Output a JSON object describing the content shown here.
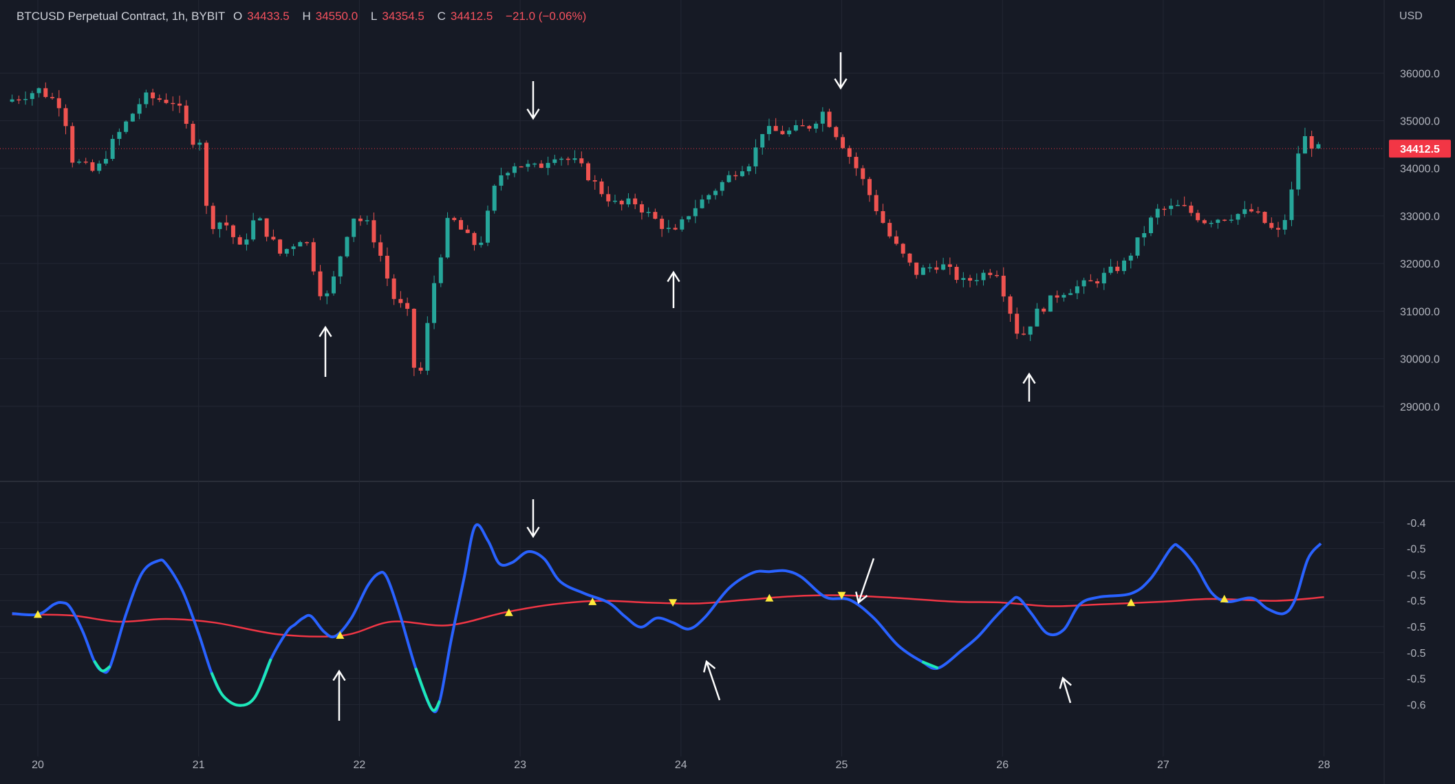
{
  "header": {
    "symbol": "BTCUSD Perpetual Contract, 1h, BYBIT",
    "open_label": "O",
    "open": "34433.5",
    "high_label": "H",
    "high": "34550.0",
    "low_label": "L",
    "low": "34354.5",
    "close_label": "C",
    "close": "34412.5",
    "change": "−21.0 (−0.06%)"
  },
  "currency": "USD",
  "last_price_label": "34412.5",
  "colors": {
    "background": "#161a25",
    "grid": "#232734",
    "up": "#26a69a",
    "down": "#ef5350",
    "oscillator": "#2962ff",
    "oscillator_oversold": "#1de9b6",
    "signal": "#f23645",
    "marker": "#ffeb3b",
    "price_tag": "#f23645",
    "arrows": "#ffffff"
  },
  "chart_data": [
    {
      "type": "candlestick",
      "title": "BTCUSD Perpetual Contract, 1h, BYBIT",
      "x_ticks": [
        "20",
        "21",
        "22",
        "23",
        "24",
        "25",
        "26",
        "27",
        "28"
      ],
      "xlim": [
        19.84,
        28.41
      ],
      "y_ticks": [
        "36000.0",
        "35000.0",
        "34000.0",
        "33000.0",
        "32000.0",
        "31000.0",
        "30000.0",
        "29000.0"
      ],
      "ylim": [
        28000,
        36900
      ],
      "last_price": 34412.5,
      "grid": true,
      "anchors": [
        [
          19.84,
          35400
        ],
        [
          20.05,
          35650
        ],
        [
          20.2,
          35300
        ],
        [
          20.25,
          34200
        ],
        [
          20.4,
          33900
        ],
        [
          20.5,
          34500
        ],
        [
          20.7,
          35500
        ],
        [
          20.9,
          35400
        ],
        [
          21.0,
          34600
        ],
        [
          21.05,
          34600
        ],
        [
          21.1,
          32800
        ],
        [
          21.2,
          32900
        ],
        [
          21.3,
          32300
        ],
        [
          21.4,
          33000
        ],
        [
          21.55,
          32200
        ],
        [
          21.7,
          32600
        ],
        [
          21.8,
          31400
        ],
        [
          21.85,
          31300
        ],
        [
          21.95,
          32500
        ],
        [
          22.0,
          33000
        ],
        [
          22.1,
          32800
        ],
        [
          22.17,
          32200
        ],
        [
          22.25,
          31300
        ],
        [
          22.35,
          30900
        ],
        [
          22.4,
          29200
        ],
        [
          22.5,
          31500
        ],
        [
          22.6,
          33000
        ],
        [
          22.75,
          32400
        ],
        [
          22.8,
          32500
        ],
        [
          22.9,
          33800
        ],
        [
          23.0,
          34100
        ],
        [
          23.15,
          34000
        ],
        [
          23.25,
          34300
        ],
        [
          23.4,
          34100
        ],
        [
          23.55,
          33500
        ],
        [
          23.65,
          33200
        ],
        [
          23.75,
          33300
        ],
        [
          23.85,
          33000
        ],
        [
          24.0,
          32600
        ],
        [
          24.1,
          33100
        ],
        [
          24.2,
          33400
        ],
        [
          24.4,
          34000
        ],
        [
          24.5,
          34200
        ],
        [
          24.52,
          34800
        ],
        [
          24.7,
          34750
        ],
        [
          24.85,
          34900
        ],
        [
          24.92,
          35200
        ],
        [
          25.05,
          34500
        ],
        [
          25.15,
          33900
        ],
        [
          25.35,
          32500
        ],
        [
          25.5,
          31800
        ],
        [
          25.65,
          32000
        ],
        [
          25.8,
          31600
        ],
        [
          26.0,
          31900
        ],
        [
          26.1,
          30900
        ],
        [
          26.15,
          30400
        ],
        [
          26.25,
          30950
        ],
        [
          26.4,
          31400
        ],
        [
          26.6,
          31600
        ],
        [
          26.8,
          32000
        ],
        [
          27.0,
          33100
        ],
        [
          27.15,
          33200
        ],
        [
          27.3,
          32900
        ],
        [
          27.45,
          33000
        ],
        [
          27.6,
          33100
        ],
        [
          27.75,
          32600
        ],
        [
          27.82,
          33100
        ],
        [
          27.9,
          34700
        ],
        [
          28.0,
          34400
        ]
      ]
    },
    {
      "type": "line",
      "x_ticks": [
        "20",
        "21",
        "22",
        "23",
        "24",
        "25",
        "26",
        "27",
        "28"
      ],
      "y_ticks": [
        "-0.4",
        "-0.5",
        "-0.5",
        "-0.5",
        "-0.5",
        "-0.5",
        "-0.5",
        "-0.6"
      ],
      "ylim": [
        -0.63,
        -0.385
      ],
      "oversold_below": -0.56,
      "series": [
        {
          "role": "oscillator",
          "points": [
            [
              19.84,
              -0.5
            ],
            [
              20.0,
              -0.501
            ],
            [
              20.1,
              -0.49
            ],
            [
              20.15,
              -0.488
            ],
            [
              20.2,
              -0.493
            ],
            [
              20.28,
              -0.52
            ],
            [
              20.35,
              -0.552
            ],
            [
              20.4,
              -0.563
            ],
            [
              20.45,
              -0.558
            ],
            [
              20.55,
              -0.5
            ],
            [
              20.65,
              -0.455
            ],
            [
              20.75,
              -0.442
            ],
            [
              20.8,
              -0.446
            ],
            [
              20.9,
              -0.475
            ],
            [
              21.0,
              -0.522
            ],
            [
              21.08,
              -0.565
            ],
            [
              21.15,
              -0.59
            ],
            [
              21.25,
              -0.601
            ],
            [
              21.35,
              -0.592
            ],
            [
              21.45,
              -0.55
            ],
            [
              21.55,
              -0.52
            ],
            [
              21.6,
              -0.512
            ],
            [
              21.65,
              -0.505
            ],
            [
              21.7,
              -0.503
            ],
            [
              21.78,
              -0.52
            ],
            [
              21.85,
              -0.525
            ],
            [
              21.95,
              -0.505
            ],
            [
              22.05,
              -0.47
            ],
            [
              22.12,
              -0.456
            ],
            [
              22.17,
              -0.46
            ],
            [
              22.25,
              -0.5
            ],
            [
              22.35,
              -0.56
            ],
            [
              22.45,
              -0.605
            ],
            [
              22.5,
              -0.596
            ],
            [
              22.57,
              -0.53
            ],
            [
              22.65,
              -0.462
            ],
            [
              22.72,
              -0.404
            ],
            [
              22.8,
              -0.42
            ],
            [
              22.87,
              -0.445
            ],
            [
              22.95,
              -0.444
            ],
            [
              23.05,
              -0.432
            ],
            [
              23.15,
              -0.44
            ],
            [
              23.25,
              -0.465
            ],
            [
              23.4,
              -0.478
            ],
            [
              23.55,
              -0.488
            ],
            [
              23.65,
              -0.503
            ],
            [
              23.75,
              -0.515
            ],
            [
              23.85,
              -0.505
            ],
            [
              23.95,
              -0.51
            ],
            [
              24.05,
              -0.517
            ],
            [
              24.15,
              -0.504
            ],
            [
              24.3,
              -0.472
            ],
            [
              24.45,
              -0.455
            ],
            [
              24.55,
              -0.454
            ],
            [
              24.65,
              -0.453
            ],
            [
              24.75,
              -0.46
            ],
            [
              24.9,
              -0.482
            ],
            [
              25.05,
              -0.485
            ],
            [
              25.2,
              -0.505
            ],
            [
              25.35,
              -0.535
            ],
            [
              25.5,
              -0.553
            ],
            [
              25.6,
              -0.56
            ],
            [
              25.75,
              -0.54
            ],
            [
              25.85,
              -0.525
            ],
            [
              25.95,
              -0.505
            ],
            [
              26.05,
              -0.487
            ],
            [
              26.1,
              -0.483
            ],
            [
              26.18,
              -0.5
            ],
            [
              26.28,
              -0.522
            ],
            [
              26.38,
              -0.518
            ],
            [
              26.48,
              -0.49
            ],
            [
              26.6,
              -0.482
            ],
            [
              26.8,
              -0.478
            ],
            [
              26.92,
              -0.462
            ],
            [
              27.05,
              -0.428
            ],
            [
              27.1,
              -0.427
            ],
            [
              27.2,
              -0.447
            ],
            [
              27.3,
              -0.477
            ],
            [
              27.4,
              -0.487
            ],
            [
              27.55,
              -0.483
            ],
            [
              27.65,
              -0.495
            ],
            [
              27.75,
              -0.5
            ],
            [
              27.82,
              -0.485
            ],
            [
              27.9,
              -0.44
            ],
            [
              27.98,
              -0.423
            ]
          ]
        },
        {
          "role": "signal",
          "points": [
            [
              19.84,
              -0.501
            ],
            [
              20.2,
              -0.502
            ],
            [
              20.5,
              -0.509
            ],
            [
              20.8,
              -0.506
            ],
            [
              21.1,
              -0.51
            ],
            [
              21.5,
              -0.523
            ],
            [
              21.9,
              -0.524
            ],
            [
              22.2,
              -0.509
            ],
            [
              22.55,
              -0.513
            ],
            [
              22.9,
              -0.499
            ],
            [
              23.2,
              -0.49
            ],
            [
              23.5,
              -0.486
            ],
            [
              23.8,
              -0.488
            ],
            [
              24.1,
              -0.489
            ],
            [
              24.4,
              -0.485
            ],
            [
              24.7,
              -0.481
            ],
            [
              25.0,
              -0.48
            ],
            [
              25.35,
              -0.483
            ],
            [
              25.7,
              -0.487
            ],
            [
              26.0,
              -0.488
            ],
            [
              26.3,
              -0.492
            ],
            [
              26.6,
              -0.49
            ],
            [
              27.0,
              -0.487
            ],
            [
              27.3,
              -0.484
            ],
            [
              27.7,
              -0.486
            ],
            [
              28.0,
              -0.482
            ]
          ]
        }
      ],
      "cross_markers": [
        {
          "x": 20.0,
          "y": -0.501,
          "dir": "up"
        },
        {
          "x": 21.88,
          "y": -0.524,
          "dir": "up"
        },
        {
          "x": 22.93,
          "y": -0.499,
          "dir": "up"
        },
        {
          "x": 23.45,
          "y": -0.487,
          "dir": "up"
        },
        {
          "x": 23.95,
          "y": -0.488,
          "dir": "down"
        },
        {
          "x": 24.55,
          "y": -0.483,
          "dir": "up"
        },
        {
          "x": 25.0,
          "y": -0.48,
          "dir": "down"
        },
        {
          "x": 26.8,
          "y": -0.488,
          "dir": "up"
        },
        {
          "x": 27.38,
          "y": -0.484,
          "dir": "up"
        }
      ]
    }
  ]
}
